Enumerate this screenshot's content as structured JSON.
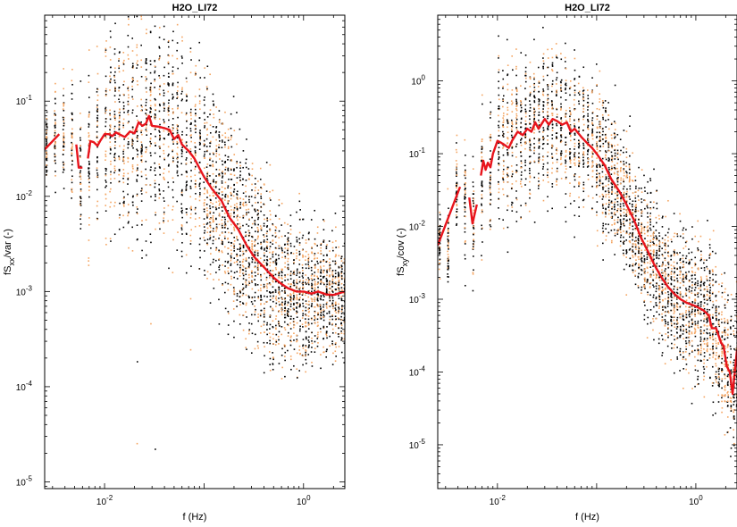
{
  "chart_data": [
    {
      "type": "scatter",
      "title": "H2O_LI72",
      "xlabel": "f (Hz)",
      "ylabel_main": "fS",
      "ylabel_sub": "xx",
      "ylabel_rest": "/var (-)",
      "xscale": "log",
      "yscale": "log",
      "xlim": [
        0.0025,
        2.6
      ],
      "ylim": [
        8.5e-06,
        0.8
      ],
      "grid": false,
      "x_ticks": [
        {
          "label": "10",
          "exp": "-2",
          "value": 0.01
        },
        {
          "label": "10",
          "exp": "0",
          "value": 1
        }
      ],
      "y_ticks": [
        {
          "label": "10",
          "exp": "-5",
          "value": 1e-05
        },
        {
          "label": "10",
          "exp": "-4",
          "value": 0.0001
        },
        {
          "label": "10",
          "exp": "-3",
          "value": 0.001
        },
        {
          "label": "10",
          "exp": "-2",
          "value": 0.01
        },
        {
          "label": "10",
          "exp": "-1",
          "value": 0.1
        }
      ],
      "scatter_colors": [
        "#000000",
        "#f4a460"
      ],
      "median_color": "#e8141c",
      "scatter_envelope": [
        {
          "f": 0.0025,
          "min": 0.005,
          "max": 0.4
        },
        {
          "f": 0.005,
          "min": 0.001,
          "max": 0.5
        },
        {
          "f": 0.01,
          "min": 3e-05,
          "max": 0.8
        },
        {
          "f": 0.03,
          "min": 2e-05,
          "max": 0.8
        },
        {
          "f": 0.1,
          "min": 2e-05,
          "max": 0.5
        },
        {
          "f": 0.3,
          "min": 3e-05,
          "max": 0.2
        },
        {
          "f": 1,
          "min": 2e-05,
          "max": 0.02
        },
        {
          "f": 2.5,
          "min": 2e-05,
          "max": 0.006
        }
      ],
      "median_segments": [
        [
          [
            0.0025,
            0.031
          ],
          [
            0.0035,
            0.045
          ]
        ],
        [
          [
            0.0052,
            0.035
          ],
          [
            0.0055,
            0.02
          ],
          [
            0.006,
            0.02
          ]
        ],
        [
          [
            0.0068,
            0.025
          ],
          [
            0.0072,
            0.038
          ],
          [
            0.0078,
            0.037
          ],
          [
            0.0085,
            0.034
          ],
          [
            0.009,
            0.038
          ],
          [
            0.01,
            0.045
          ],
          [
            0.011,
            0.045
          ],
          [
            0.012,
            0.043
          ],
          [
            0.013,
            0.047
          ],
          [
            0.014,
            0.045
          ],
          [
            0.016,
            0.042
          ],
          [
            0.018,
            0.048
          ],
          [
            0.02,
            0.046
          ],
          [
            0.022,
            0.06
          ],
          [
            0.024,
            0.055
          ],
          [
            0.026,
            0.058
          ],
          [
            0.028,
            0.07
          ],
          [
            0.03,
            0.055
          ],
          [
            0.035,
            0.054
          ],
          [
            0.04,
            0.052
          ],
          [
            0.045,
            0.05
          ],
          [
            0.05,
            0.04
          ],
          [
            0.055,
            0.044
          ],
          [
            0.06,
            0.035
          ],
          [
            0.07,
            0.03
          ],
          [
            0.08,
            0.025
          ],
          [
            0.1,
            0.016
          ],
          [
            0.12,
            0.012
          ],
          [
            0.15,
            0.009
          ],
          [
            0.18,
            0.006
          ],
          [
            0.22,
            0.0045
          ],
          [
            0.27,
            0.003
          ],
          [
            0.32,
            0.0023
          ],
          [
            0.4,
            0.0018
          ],
          [
            0.5,
            0.0014
          ],
          [
            0.6,
            0.0012
          ],
          [
            0.7,
            0.00108
          ],
          [
            0.85,
            0.001
          ],
          [
            1.0,
            0.001
          ],
          [
            1.2,
            0.00095
          ],
          [
            1.4,
            0.001
          ],
          [
            1.7,
            0.00093
          ],
          [
            2.0,
            0.00092
          ],
          [
            2.3,
            0.00096
          ],
          [
            2.6,
            0.001
          ]
        ]
      ]
    },
    {
      "type": "scatter",
      "title": "H2O_LI72",
      "xlabel": "f (Hz)",
      "ylabel_main": "fS",
      "ylabel_sub": "xy",
      "ylabel_rest": "/cov (-)",
      "xscale": "log",
      "yscale": "log",
      "xlim": [
        0.0025,
        2.6
      ],
      "ylim": [
        2.5e-06,
        8
      ],
      "grid": false,
      "x_ticks": [
        {
          "label": "10",
          "exp": "-2",
          "value": 0.01
        },
        {
          "label": "10",
          "exp": "0",
          "value": 1
        }
      ],
      "y_ticks": [
        {
          "label": "10",
          "exp": "-5",
          "value": 1e-05
        },
        {
          "label": "10",
          "exp": "-4",
          "value": 0.0001
        },
        {
          "label": "10",
          "exp": "-3",
          "value": 0.001
        },
        {
          "label": "10",
          "exp": "-2",
          "value": 0.01
        },
        {
          "label": "10",
          "exp": "-1",
          "value": 0.1
        },
        {
          "label": "10",
          "exp": "0",
          "value": 1
        }
      ],
      "scatter_colors": [
        "#000000",
        "#f4a460"
      ],
      "median_color": "#e8141c",
      "scatter_envelope": [
        {
          "f": 0.0025,
          "min": 0.002,
          "max": 0.05
        },
        {
          "f": 0.005,
          "min": 0.0005,
          "max": 3
        },
        {
          "f": 0.01,
          "min": 0.0003,
          "max": 6
        },
        {
          "f": 0.03,
          "min": 0.0005,
          "max": 6
        },
        {
          "f": 0.1,
          "min": 0.0003,
          "max": 3
        },
        {
          "f": 0.3,
          "min": 0.0002,
          "max": 1
        },
        {
          "f": 1,
          "min": 3e-05,
          "max": 0.3
        },
        {
          "f": 2.5,
          "min": 5e-06,
          "max": 0.03
        }
      ],
      "median_segments": [
        [
          [
            0.0025,
            0.0055
          ],
          [
            0.0042,
            0.035
          ]
        ],
        [
          [
            0.0052,
            0.025
          ],
          [
            0.0056,
            0.011
          ],
          [
            0.0062,
            0.02
          ]
        ],
        [
          [
            0.0068,
            0.05
          ],
          [
            0.0072,
            0.08
          ],
          [
            0.0076,
            0.06
          ],
          [
            0.008,
            0.075
          ],
          [
            0.0085,
            0.065
          ],
          [
            0.009,
            0.1
          ],
          [
            0.01,
            0.15
          ],
          [
            0.011,
            0.14
          ],
          [
            0.012,
            0.13
          ],
          [
            0.013,
            0.12
          ],
          [
            0.014,
            0.15
          ],
          [
            0.016,
            0.2
          ],
          [
            0.018,
            0.18
          ],
          [
            0.02,
            0.22
          ],
          [
            0.022,
            0.2
          ],
          [
            0.024,
            0.27
          ],
          [
            0.026,
            0.22
          ],
          [
            0.03,
            0.3
          ],
          [
            0.033,
            0.25
          ],
          [
            0.036,
            0.3
          ],
          [
            0.04,
            0.28
          ],
          [
            0.045,
            0.25
          ],
          [
            0.05,
            0.27
          ],
          [
            0.055,
            0.2
          ],
          [
            0.06,
            0.22
          ],
          [
            0.07,
            0.17
          ],
          [
            0.08,
            0.14
          ],
          [
            0.09,
            0.12
          ],
          [
            0.1,
            0.1
          ],
          [
            0.12,
            0.07
          ],
          [
            0.14,
            0.045
          ],
          [
            0.17,
            0.03
          ],
          [
            0.2,
            0.02
          ],
          [
            0.24,
            0.012
          ],
          [
            0.28,
            0.007
          ],
          [
            0.33,
            0.0045
          ],
          [
            0.38,
            0.003
          ],
          [
            0.45,
            0.002
          ],
          [
            0.52,
            0.0015
          ],
          [
            0.6,
            0.0012
          ],
          [
            0.7,
            0.001
          ],
          [
            0.8,
            0.0009
          ],
          [
            1.0,
            0.0008
          ],
          [
            1.2,
            0.0007
          ],
          [
            1.35,
            0.0006
          ],
          [
            1.45,
            0.0004
          ],
          [
            1.6,
            0.0004
          ],
          [
            1.8,
            0.00025
          ],
          [
            1.9,
            0.00023
          ],
          [
            2.05,
            0.00012
          ],
          [
            2.2,
            0.0001
          ],
          [
            2.35,
            5e-05
          ],
          [
            2.6,
            0.0002
          ]
        ]
      ]
    }
  ]
}
